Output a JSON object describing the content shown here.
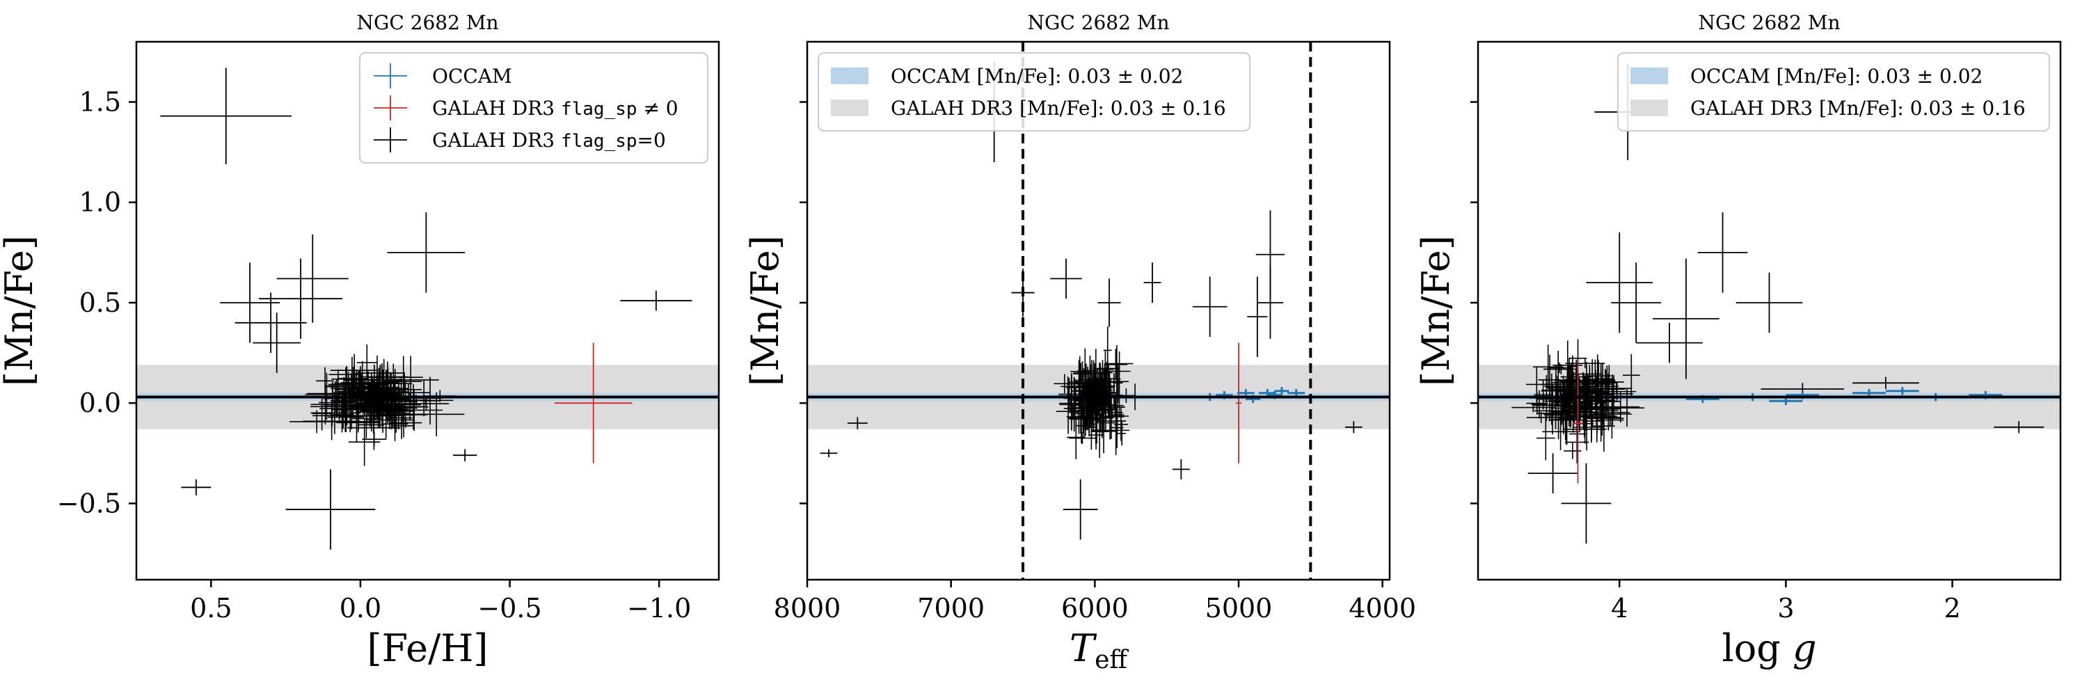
{
  "chart_data": [
    {
      "type": "scatter",
      "title": "NGC 2682 Mn",
      "xlabel": "[Fe/H]",
      "ylabel": "[Mn/Fe]",
      "xlim": [
        0.75,
        -1.2
      ],
      "ylim": [
        -0.88,
        1.8
      ],
      "x_reversed": true,
      "xticks": [
        0.5,
        0.0,
        -0.5,
        -1.0
      ],
      "xtick_labels": [
        "0.5",
        "0.0",
        "−0.5",
        "−1.0"
      ],
      "yticks": [
        -0.5,
        0.0,
        0.5,
        1.0,
        1.5
      ],
      "ytick_labels": [
        "−0.5",
        "0.0",
        "0.5",
        "1.0",
        "1.5"
      ],
      "legend_position": "top-right",
      "legend": [
        {
          "label_pre": "OCCAM",
          "label_mono": "",
          "label_post": "",
          "color": "#1f77b4"
        },
        {
          "label_pre": "GALAH DR3 ",
          "label_mono": "flag_sp",
          "label_post": " ≠ 0",
          "color": "#d62728"
        },
        {
          "label_pre": "GALAH DR3 ",
          "label_mono": "flag_sp",
          "label_post": "=0",
          "color": "#000000"
        }
      ],
      "bands": [
        {
          "series": "GALAH DR3",
          "center": 0.03,
          "half_width": 0.16,
          "color": "#dcdcdc"
        },
        {
          "series": "OCCAM",
          "center": 0.03,
          "half_width": 0.02,
          "color": "#b9d4ea"
        }
      ],
      "hline": {
        "y": 0.03,
        "color": "#000000"
      },
      "series": [
        {
          "name": "GALAH DR3 flag_sp=0",
          "color": "#000000",
          "points": [
            [
              0.45,
              1.43,
              0.22,
              0.24
            ],
            [
              -0.22,
              0.75,
              0.13,
              0.2
            ],
            [
              -0.99,
              0.51,
              0.12,
              0.05
            ],
            [
              0.37,
              0.5,
              0.1,
              0.2
            ],
            [
              0.2,
              0.52,
              0.14,
              0.2
            ],
            [
              0.55,
              -0.42,
              0.05,
              0.04
            ],
            [
              -0.35,
              -0.26,
              0.04,
              0.03
            ],
            [
              0.28,
              0.3,
              0.08,
              0.15
            ],
            [
              0.1,
              -0.53,
              0.15,
              0.2
            ],
            [
              0.16,
              0.62,
              0.12,
              0.22
            ],
            [
              0.3,
              0.4,
              0.12,
              0.15
            ]
          ]
        },
        {
          "name": "GALAH DR3 flag_sp ≠ 0",
          "color": "#d62728",
          "points": [
            [
              -0.78,
              0.0,
              0.13,
              0.3
            ]
          ]
        }
      ]
    },
    {
      "type": "scatter",
      "title": "NGC 2682 Mn",
      "xlabel": "T_eff",
      "xlabel_main": "T",
      "xlabel_sub": "eff",
      "ylabel": "[Mn/Fe]",
      "xlim": [
        8000,
        3950
      ],
      "ylim": [
        -0.88,
        1.8
      ],
      "x_reversed": true,
      "xticks": [
        8000,
        7000,
        6000,
        5000,
        4000
      ],
      "xtick_labels": [
        "8000",
        "7000",
        "6000",
        "5000",
        "4000"
      ],
      "yticks": [
        -0.5,
        0.0,
        0.5,
        1.0,
        1.5
      ],
      "vlines": [
        6500,
        4500
      ],
      "legend_position": "top-left",
      "legend": [
        {
          "label_pre": "OCCAM [Mn/Fe]: 0.03 ± 0.02",
          "color": "#b9d4ea"
        },
        {
          "label_pre": "GALAH DR3 [Mn/Fe]: 0.03 ± 0.16",
          "color": "#dcdcdc"
        }
      ],
      "bands": [
        {
          "series": "GALAH DR3",
          "center": 0.03,
          "half_width": 0.16,
          "color": "#dcdcdc"
        },
        {
          "series": "OCCAM",
          "center": 0.03,
          "half_width": 0.02,
          "color": "#b9d4ea"
        }
      ],
      "hline": {
        "y": 0.03,
        "color": "#000000"
      },
      "series": [
        {
          "name": "GALAH DR3 flag_sp=0",
          "color": "#000000",
          "points": [
            [
              7850,
              -0.25,
              60,
              0.02
            ],
            [
              7650,
              -0.1,
              70,
              0.03
            ],
            [
              6700,
              1.45,
              80,
              0.25
            ],
            [
              6500,
              0.55,
              80,
              0.12
            ],
            [
              6200,
              0.62,
              110,
              0.1
            ],
            [
              4780,
              0.74,
              100,
              0.22
            ],
            [
              4780,
              0.5,
              90,
              0.18
            ],
            [
              5200,
              0.48,
              120,
              0.15
            ],
            [
              4870,
              0.43,
              70,
              0.2
            ],
            [
              4200,
              -0.12,
              60,
              0.03
            ],
            [
              5400,
              -0.33,
              60,
              0.05
            ],
            [
              6100,
              -0.53,
              120,
              0.15
            ],
            [
              5900,
              0.5,
              80,
              0.12
            ],
            [
              5600,
              0.6,
              60,
              0.1
            ]
          ]
        },
        {
          "name": "GALAH DR3 flag_sp ≠ 0",
          "color": "#d62728",
          "points": [
            [
              5000,
              0.0,
              20,
              0.3
            ]
          ]
        },
        {
          "name": "OCCAM",
          "color": "#1f77b4",
          "points": [
            [
              5100,
              0.04,
              60,
              0.02
            ],
            [
              4950,
              0.05,
              60,
              0.02
            ],
            [
              4800,
              0.05,
              60,
              0.02
            ],
            [
              4700,
              0.06,
              50,
              0.02
            ],
            [
              4600,
              0.05,
              60,
              0.02
            ],
            [
              4900,
              0.02,
              50,
              0.02
            ],
            [
              5200,
              0.03,
              60,
              0.02
            ],
            [
              4750,
              0.04,
              50,
              0.02
            ]
          ]
        }
      ]
    },
    {
      "type": "scatter",
      "title": "NGC 2682 Mn",
      "xlabel": "log g",
      "ylabel": "[Mn/Fe]",
      "xlim": [
        4.85,
        1.35
      ],
      "ylim": [
        -0.88,
        1.8
      ],
      "x_reversed": true,
      "xticks": [
        4,
        3,
        2
      ],
      "xtick_labels": [
        "4",
        "3",
        "2"
      ],
      "yticks": [
        -0.5,
        0.0,
        0.5,
        1.0,
        1.5
      ],
      "legend_position": "top-right",
      "legend": [
        {
          "label_pre": "OCCAM [Mn/Fe]: 0.03 ± 0.02",
          "color": "#b9d4ea"
        },
        {
          "label_pre": "GALAH DR3 [Mn/Fe]: 0.03 ± 0.16",
          "color": "#dcdcdc"
        }
      ],
      "bands": [
        {
          "series": "GALAH DR3",
          "center": 0.03,
          "half_width": 0.16,
          "color": "#dcdcdc"
        },
        {
          "series": "OCCAM",
          "center": 0.03,
          "half_width": 0.02,
          "color": "#b9d4ea"
        }
      ],
      "hline": {
        "y": 0.03,
        "color": "#000000"
      },
      "series": [
        {
          "name": "GALAH DR3 flag_sp=0",
          "color": "#000000",
          "points": [
            [
              3.95,
              1.45,
              0.2,
              0.24
            ],
            [
              3.38,
              0.75,
              0.15,
              0.2
            ],
            [
              3.1,
              0.5,
              0.2,
              0.15
            ],
            [
              3.6,
              0.42,
              0.2,
              0.3
            ],
            [
              1.6,
              -0.12,
              0.15,
              0.03
            ],
            [
              2.4,
              0.1,
              0.2,
              0.03
            ],
            [
              2.9,
              0.07,
              0.25,
              0.03
            ],
            [
              4.0,
              0.6,
              0.2,
              0.25
            ],
            [
              3.9,
              0.5,
              0.15,
              0.2
            ],
            [
              3.7,
              0.3,
              0.2,
              0.1
            ],
            [
              4.4,
              -0.35,
              0.15,
              0.1
            ],
            [
              4.2,
              -0.5,
              0.15,
              0.2
            ]
          ]
        },
        {
          "name": "GALAH DR3 flag_sp ≠ 0",
          "color": "#d62728",
          "points": [
            [
              4.25,
              -0.1,
              0.03,
              0.3
            ]
          ]
        },
        {
          "name": "OCCAM",
          "color": "#1f77b4",
          "points": [
            [
              3.5,
              0.02,
              0.1,
              0.02
            ],
            [
              3.2,
              0.03,
              0.1,
              0.02
            ],
            [
              2.9,
              0.04,
              0.1,
              0.02
            ],
            [
              2.5,
              0.05,
              0.1,
              0.02
            ],
            [
              2.1,
              0.03,
              0.1,
              0.02
            ],
            [
              1.8,
              0.04,
              0.1,
              0.02
            ],
            [
              2.3,
              0.06,
              0.1,
              0.02
            ],
            [
              3.0,
              0.01,
              0.1,
              0.02
            ]
          ]
        }
      ]
    }
  ]
}
